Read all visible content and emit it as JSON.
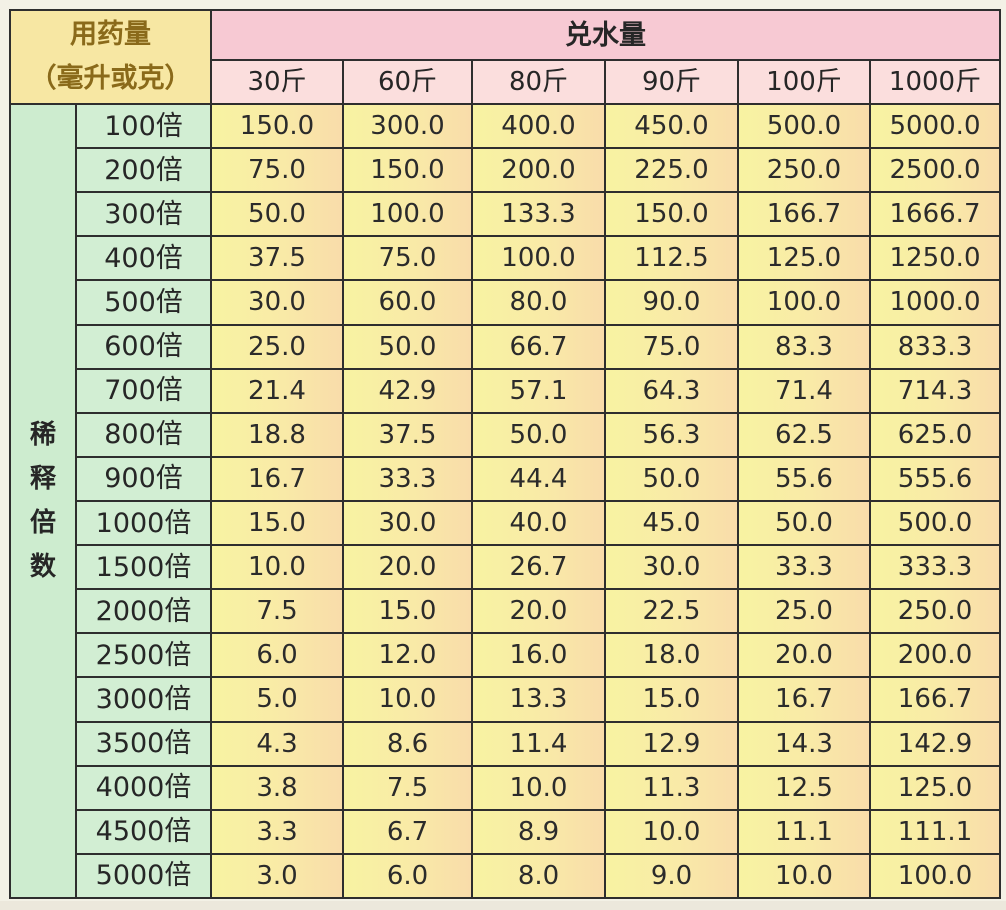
{
  "header": {
    "corner_line1": "用药量",
    "corner_line2": "（毫升或克）",
    "main": "兑水量",
    "columns": [
      "30斤",
      "60斤",
      "80斤",
      "90斤",
      "100斤",
      "1000斤"
    ]
  },
  "row_group_chars": [
    "稀",
    "释",
    "倍",
    "数"
  ],
  "rows": [
    {
      "label": "100倍",
      "values": [
        "150.0",
        "300.0",
        "400.0",
        "450.0",
        "500.0",
        "5000.0"
      ]
    },
    {
      "label": "200倍",
      "values": [
        "75.0",
        "150.0",
        "200.0",
        "225.0",
        "250.0",
        "2500.0"
      ]
    },
    {
      "label": "300倍",
      "values": [
        "50.0",
        "100.0",
        "133.3",
        "150.0",
        "166.7",
        "1666.7"
      ]
    },
    {
      "label": "400倍",
      "values": [
        "37.5",
        "75.0",
        "100.0",
        "112.5",
        "125.0",
        "1250.0"
      ]
    },
    {
      "label": "500倍",
      "values": [
        "30.0",
        "60.0",
        "80.0",
        "90.0",
        "100.0",
        "1000.0"
      ]
    },
    {
      "label": "600倍",
      "values": [
        "25.0",
        "50.0",
        "66.7",
        "75.0",
        "83.3",
        "833.3"
      ]
    },
    {
      "label": "700倍",
      "values": [
        "21.4",
        "42.9",
        "57.1",
        "64.3",
        "71.4",
        "714.3"
      ]
    },
    {
      "label": "800倍",
      "values": [
        "18.8",
        "37.5",
        "50.0",
        "56.3",
        "62.5",
        "625.0"
      ]
    },
    {
      "label": "900倍",
      "values": [
        "16.7",
        "33.3",
        "44.4",
        "50.0",
        "55.6",
        "555.6"
      ]
    },
    {
      "label": "1000倍",
      "values": [
        "15.0",
        "30.0",
        "40.0",
        "45.0",
        "50.0",
        "500.0"
      ]
    },
    {
      "label": "1500倍",
      "values": [
        "10.0",
        "20.0",
        "26.7",
        "30.0",
        "33.3",
        "333.3"
      ]
    },
    {
      "label": "2000倍",
      "values": [
        "7.5",
        "15.0",
        "20.0",
        "22.5",
        "25.0",
        "250.0"
      ]
    },
    {
      "label": "2500倍",
      "values": [
        "6.0",
        "12.0",
        "16.0",
        "18.0",
        "20.0",
        "200.0"
      ]
    },
    {
      "label": "3000倍",
      "values": [
        "5.0",
        "10.0",
        "13.3",
        "15.0",
        "16.7",
        "166.7"
      ]
    },
    {
      "label": "3500倍",
      "values": [
        "4.3",
        "8.6",
        "11.4",
        "12.9",
        "14.3",
        "142.9"
      ]
    },
    {
      "label": "4000倍",
      "values": [
        "3.8",
        "7.5",
        "10.0",
        "11.3",
        "12.5",
        "125.0"
      ]
    },
    {
      "label": "4500倍",
      "values": [
        "3.3",
        "6.7",
        "8.9",
        "10.0",
        "11.1",
        "111.1"
      ]
    },
    {
      "label": "5000倍",
      "values": [
        "3.0",
        "6.0",
        "8.0",
        "9.0",
        "10.0",
        "100.0"
      ]
    }
  ]
}
